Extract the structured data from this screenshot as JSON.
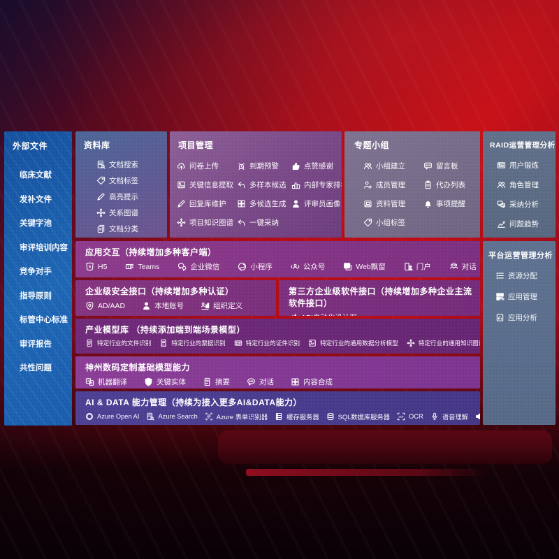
{
  "colors": {
    "background_red": "#b90d15",
    "sidebar_blue": "#1c60ae",
    "panel_slate": "#5e7190",
    "purple_bar": "#7c2f80",
    "indigo_bar": "#4a3b8c",
    "text": "#ffffff"
  },
  "sidebar": {
    "title": "外部文件",
    "items": [
      {
        "label": "临床文献",
        "name": "sidebar-item"
      },
      {
        "label": "发补文件",
        "name": "sidebar-item"
      },
      {
        "label": "关键字池",
        "name": "sidebar-item"
      },
      {
        "label": "审评培训内容",
        "name": "sidebar-item"
      },
      {
        "label": "竞争对手",
        "name": "sidebar-item"
      },
      {
        "label": "指导原则",
        "name": "sidebar-item"
      },
      {
        "label": "标管中心标准",
        "name": "sidebar-item"
      },
      {
        "label": "审评报告",
        "name": "sidebar-item"
      },
      {
        "label": "共性问题",
        "name": "sidebar-item"
      }
    ]
  },
  "panels": {
    "repository": {
      "title": "资料库",
      "items": [
        {
          "icon": "doc-search",
          "label": "文档搜索"
        },
        {
          "icon": "tag",
          "label": "文档标签"
        },
        {
          "icon": "pen",
          "label": "高亮提示"
        },
        {
          "icon": "network",
          "label": "关系图谱"
        },
        {
          "icon": "docs",
          "label": "文档分类"
        }
      ]
    },
    "project": {
      "title": "项目管理",
      "items": [
        {
          "icon": "cloud-upload",
          "label": "问卷上传"
        },
        {
          "icon": "alarm",
          "label": "到期预警"
        },
        {
          "icon": "thumbs-up",
          "label": "点赞感谢"
        },
        {
          "icon": "image-frame",
          "label": "关键信息提取"
        },
        {
          "icon": "reply-arrow",
          "label": "多样本候选"
        },
        {
          "icon": "rank-podium",
          "label": "内部专家排名"
        },
        {
          "icon": "pen",
          "label": "回复库维护"
        },
        {
          "icon": "puzzle",
          "label": "多候选生成"
        },
        {
          "icon": "person",
          "label": "评审员画像"
        },
        {
          "icon": "network",
          "label": "项目知识图谱"
        },
        {
          "icon": "reply-arrow",
          "label": "一键采纳"
        }
      ]
    },
    "groups": {
      "title": "专题小组",
      "items": [
        {
          "icon": "users",
          "label": "小组建立"
        },
        {
          "icon": "bbs",
          "label": "留言板"
        },
        {
          "icon": "person-add",
          "label": "成员管理"
        },
        {
          "icon": "clipboard",
          "label": "代办列表"
        },
        {
          "icon": "archive",
          "label": "资料管理"
        },
        {
          "icon": "bell",
          "label": "事项提醒"
        },
        {
          "icon": "tag",
          "label": "小组标签"
        }
      ]
    },
    "raid": {
      "title": "RAID运营管理分析",
      "items": [
        {
          "icon": "card",
          "label": "用户锻炼"
        },
        {
          "icon": "users",
          "label": "角色管理"
        },
        {
          "icon": "chat-qa",
          "label": "采纳分析"
        },
        {
          "icon": "chart-trend",
          "label": "问题趋势"
        }
      ]
    },
    "platform": {
      "title": "平台运营管理分析",
      "items": [
        {
          "icon": "list",
          "label": "资源分配"
        },
        {
          "icon": "grid",
          "label": "应用管理"
        },
        {
          "icon": "chart-doc",
          "label": "应用分析"
        }
      ]
    },
    "interaction": {
      "title": "应用交互（持续增加多种客户端）",
      "items": [
        {
          "icon": "h5",
          "label": "H5"
        },
        {
          "icon": "teams",
          "label": "Teams"
        },
        {
          "icon": "wechat-work",
          "label": "企业微信"
        },
        {
          "icon": "miniprogram",
          "label": "小程序"
        },
        {
          "icon": "official-account",
          "label": "公众号"
        },
        {
          "icon": "window",
          "label": "Web飘窗"
        },
        {
          "icon": "portal",
          "label": "门户"
        },
        {
          "icon": "dialog",
          "label": "对话"
        }
      ]
    },
    "security": {
      "title": "企业级安全接口（持续增加多种认证）",
      "items": [
        {
          "icon": "shield",
          "label": "AD/AAD"
        },
        {
          "icon": "person",
          "label": "本地账号"
        },
        {
          "icon": "org",
          "label": "组织定义"
        }
      ]
    },
    "thirdparty": {
      "title": "第三方企业级软件接口（持续增加多种企业主流软件接口）",
      "items": [
        {
          "icon": "gear",
          "label": "API自动化设计器"
        }
      ]
    },
    "models": {
      "title": "产业模型库 （持续添加端到端场景模型）",
      "items": [
        {
          "icon": "doc",
          "label": "特定行业的文件识别"
        },
        {
          "icon": "receipt",
          "label": "特定行业的票据识别"
        },
        {
          "icon": "id-card",
          "label": "特定行业的证件识别"
        },
        {
          "icon": "image-chart",
          "label": "特定行业的通用数据分析模型"
        },
        {
          "icon": "network",
          "label": "特定行业的通用知识图谱模型"
        }
      ]
    },
    "foundation": {
      "title": "神州数码定制基础模型能力",
      "items": [
        {
          "icon": "translate",
          "label": "机器翻译"
        },
        {
          "icon": "shield-a",
          "label": "关键实体"
        },
        {
          "icon": "doc",
          "label": "摘要"
        },
        {
          "icon": "chat",
          "label": "对话"
        },
        {
          "icon": "puzzle",
          "label": "内容合成"
        }
      ]
    },
    "aidata": {
      "title": "AI & DATA 能力管理（持续为接入更多AI&DATA能力）",
      "items": [
        {
          "icon": "openai",
          "label": "Azure Open AI"
        },
        {
          "icon": "doc-search",
          "label": "Azure Search"
        },
        {
          "icon": "form",
          "label": "Azure 表单识别器"
        },
        {
          "icon": "cache",
          "label": "缓存服务器"
        },
        {
          "icon": "db",
          "label": "SQL数据库服务器"
        },
        {
          "icon": "ocr",
          "label": "OCR"
        },
        {
          "icon": "voice",
          "label": "语音理解"
        },
        {
          "icon": "tts",
          "label": "TTS"
        }
      ]
    }
  }
}
